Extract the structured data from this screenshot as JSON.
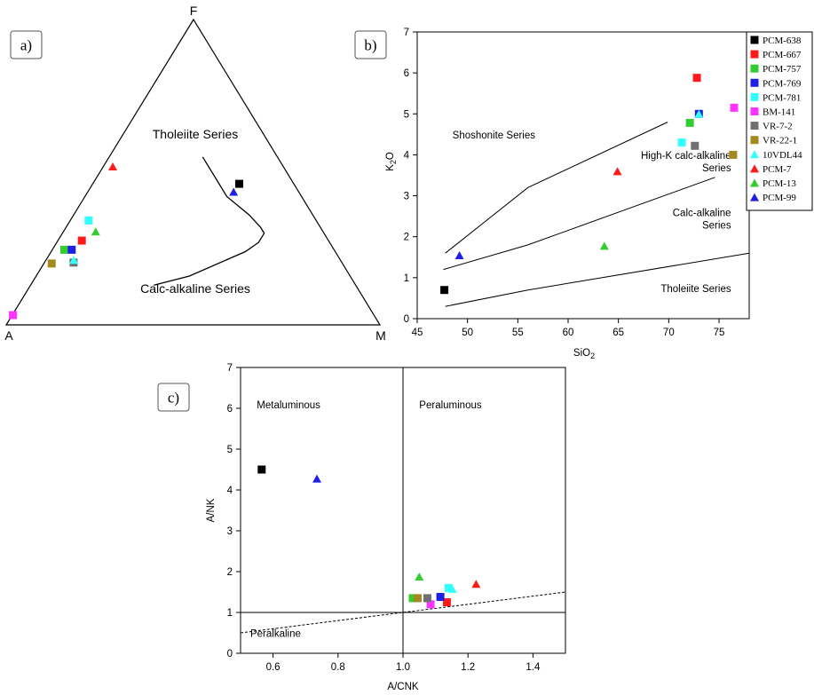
{
  "colors": {
    "PCM-638": "#000000",
    "PCM-667": "#ff1a1a",
    "PCM-757": "#33cc33",
    "PCM-769": "#1f1fe6",
    "PCM-781": "#33ffff",
    "BM-141": "#ff33ff",
    "VR-7-2": "#707070",
    "VR-22-1": "#a38a1f",
    "10VDL44": "#33ffff",
    "PCM-7": "#ff1a1a",
    "PCM-13": "#33cc33",
    "PCM-99": "#1f1fe6"
  },
  "legend": {
    "entries": [
      {
        "label": "PCM-638",
        "marker": "square",
        "color": "#000000"
      },
      {
        "label": "PCM-667",
        "marker": "square",
        "color": "#ff1a1a"
      },
      {
        "label": "PCM-757",
        "marker": "square",
        "color": "#33cc33"
      },
      {
        "label": "PCM-769",
        "marker": "square",
        "color": "#1f1fe6"
      },
      {
        "label": "PCM-781",
        "marker": "square",
        "color": "#33ffff"
      },
      {
        "label": "BM-141",
        "marker": "square",
        "color": "#ff33ff"
      },
      {
        "label": "VR-7-2",
        "marker": "square",
        "color": "#707070"
      },
      {
        "label": "VR-22-1",
        "marker": "square",
        "color": "#a38a1f"
      },
      {
        "label": "10VDL44",
        "marker": "triangle",
        "color": "#33ffff"
      },
      {
        "label": "PCM-7",
        "marker": "triangle",
        "color": "#ff1a1a"
      },
      {
        "label": "PCM-13",
        "marker": "triangle",
        "color": "#33cc33"
      },
      {
        "label": "PCM-99",
        "marker": "triangle",
        "color": "#1f1fe6"
      }
    ]
  },
  "chart_data": [
    {
      "panel": "a)",
      "type": "scatter",
      "subtype": "ternary AFM",
      "vertices": {
        "top": "F",
        "left": "A",
        "right": "M"
      },
      "regions": [
        "Tholeiite Series",
        "Calc-alkaline Series"
      ],
      "boundary_afm": [
        [
          0.55,
          0.25
        ],
        [
          0.42,
          0.38
        ],
        [
          0.36,
          0.47
        ],
        [
          0.32,
          0.52
        ],
        [
          0.3,
          0.54
        ],
        [
          0.27,
          0.54
        ],
        [
          0.24,
          0.52
        ],
        [
          0.16,
          0.41
        ],
        [
          0.13,
          0.33
        ]
      ],
      "points": [
        {
          "sample": "PCM-638",
          "marker": "square",
          "afm": [
            0.146,
            0.462,
            0.392
          ]
        },
        {
          "sample": "PCM-667",
          "marker": "square",
          "afm": [
            0.66,
            0.276,
            0.064
          ]
        },
        {
          "sample": "PCM-757",
          "marker": "square",
          "afm": [
            0.722,
            0.246,
            0.032
          ]
        },
        {
          "sample": "PCM-769",
          "marker": "square",
          "afm": [
            0.702,
            0.246,
            0.052
          ]
        },
        {
          "sample": "PCM-781",
          "marker": "square",
          "afm": [
            0.609,
            0.342,
            0.049
          ]
        },
        {
          "sample": "BM-141",
          "marker": "square",
          "afm": [
            0.966,
            0.032,
            0.002
          ]
        },
        {
          "sample": "VR-7-2",
          "marker": "square",
          "afm": [
            0.718,
            0.204,
            0.078
          ]
        },
        {
          "sample": "VR-22-1",
          "marker": "square",
          "afm": [
            0.778,
            0.201,
            0.021
          ]
        },
        {
          "sample": "10VDL44",
          "marker": "triangle",
          "afm": [
            0.713,
            0.213,
            0.074
          ]
        },
        {
          "sample": "PCM-7",
          "marker": "triangle",
          "afm": [
            0.456,
            0.519,
            0.025
          ]
        },
        {
          "sample": "PCM-13",
          "marker": "triangle",
          "afm": [
            0.608,
            0.306,
            0.086
          ]
        },
        {
          "sample": "PCM-99",
          "marker": "triangle",
          "afm": [
            0.174,
            0.436,
            0.39
          ]
        }
      ]
    },
    {
      "panel": "b)",
      "type": "scatter",
      "xlabel": "SiO",
      "xlabel_sub": "2",
      "ylabel": "K",
      "ylabel_sub": "2",
      "ylabel_end": "O",
      "xlim": [
        45,
        78
      ],
      "ylim": [
        0,
        7
      ],
      "xticks": [
        45,
        50,
        55,
        60,
        65,
        70,
        75
      ],
      "yticks": [
        0,
        1,
        2,
        3,
        4,
        5,
        6,
        7
      ],
      "regions": [
        {
          "lines": [
            "Shoshonite Series"
          ],
          "at": [
            48.5,
            4.4
          ]
        },
        {
          "lines": [
            "High-K calc-alkaline",
            "Series"
          ],
          "at": [
            76.2,
            3.9
          ]
        },
        {
          "lines": [
            "Calc-alkaline",
            "Series"
          ],
          "at": [
            76.2,
            2.5
          ]
        },
        {
          "lines": [
            "Tholeiite Series"
          ],
          "at": [
            76.2,
            0.65
          ]
        }
      ],
      "boundaries": [
        [
          [
            47.8,
            1.6
          ],
          [
            56,
            3.2
          ],
          [
            69.9,
            4.8
          ]
        ],
        [
          [
            47.6,
            1.2
          ],
          [
            56,
            1.8
          ],
          [
            74.6,
            3.45
          ]
        ],
        [
          [
            47.8,
            0.3
          ],
          [
            56,
            0.7
          ],
          [
            78,
            1.6
          ]
        ]
      ],
      "points": [
        {
          "sample": "PCM-638",
          "marker": "square",
          "x": 47.7,
          "y": 0.7
        },
        {
          "sample": "PCM-667",
          "marker": "square",
          "x": 72.8,
          "y": 5.88
        },
        {
          "sample": "PCM-757",
          "marker": "square",
          "x": 72.1,
          "y": 4.78
        },
        {
          "sample": "PCM-769",
          "marker": "square",
          "x": 73.0,
          "y": 5.0
        },
        {
          "sample": "PCM-781",
          "marker": "square",
          "x": 71.3,
          "y": 4.3
        },
        {
          "sample": "BM-141",
          "marker": "square",
          "x": 76.5,
          "y": 5.15
        },
        {
          "sample": "VR-7-2",
          "marker": "square",
          "x": 72.6,
          "y": 4.22
        },
        {
          "sample": "VR-22-1",
          "marker": "square",
          "x": 76.4,
          "y": 4.0
        },
        {
          "sample": "10VDL44",
          "marker": "triangle",
          "x": 73.0,
          "y": 5.0
        },
        {
          "sample": "PCM-7",
          "marker": "triangle",
          "x": 64.9,
          "y": 3.6
        },
        {
          "sample": "PCM-13",
          "marker": "triangle",
          "x": 63.6,
          "y": 1.78
        },
        {
          "sample": "PCM-99",
          "marker": "triangle",
          "x": 49.2,
          "y": 1.55
        }
      ]
    },
    {
      "panel": "c)",
      "type": "scatter",
      "xlabel": "A/CNK",
      "ylabel": "A/NK",
      "xlim": [
        0.5,
        1.5
      ],
      "ylim": [
        0,
        7
      ],
      "xticks": [
        0.6,
        0.8,
        1.0,
        1.2,
        1.4
      ],
      "xticklabels": [
        "0.6",
        "0.8",
        "1.0",
        "1.2",
        "1.4"
      ],
      "yticks": [
        0,
        1,
        2,
        3,
        4,
        5,
        6,
        7
      ],
      "regions": [
        {
          "lines": [
            "Metaluminous"
          ],
          "at": [
            0.55,
            6.0
          ]
        },
        {
          "lines": [
            "Peraluminous"
          ],
          "at": [
            1.05,
            6.0
          ]
        },
        {
          "lines": [
            "Peralkaline"
          ],
          "at": [
            0.53,
            0.4
          ]
        }
      ],
      "reference_lines": {
        "vertical_x": 1.0,
        "horizontal_y": 1.0,
        "dashed": [
          [
            0.5,
            0.5
          ],
          [
            1.5,
            1.5
          ]
        ]
      },
      "points": [
        {
          "sample": "PCM-638",
          "marker": "square",
          "x": 0.565,
          "y": 4.5
        },
        {
          "sample": "PCM-667",
          "marker": "square",
          "x": 1.135,
          "y": 1.25
        },
        {
          "sample": "PCM-757",
          "marker": "square",
          "x": 1.03,
          "y": 1.35
        },
        {
          "sample": "PCM-769",
          "marker": "square",
          "x": 1.115,
          "y": 1.38
        },
        {
          "sample": "PCM-781",
          "marker": "square",
          "x": 1.14,
          "y": 1.6
        },
        {
          "sample": "BM-141",
          "marker": "square",
          "x": 1.085,
          "y": 1.2
        },
        {
          "sample": "VR-7-2",
          "marker": "square",
          "x": 1.075,
          "y": 1.35
        },
        {
          "sample": "VR-22-1",
          "marker": "square",
          "x": 1.045,
          "y": 1.35
        },
        {
          "sample": "10VDL44",
          "marker": "triangle",
          "x": 1.152,
          "y": 1.58
        },
        {
          "sample": "PCM-7",
          "marker": "triangle",
          "x": 1.225,
          "y": 1.7
        },
        {
          "sample": "PCM-13",
          "marker": "triangle",
          "x": 1.05,
          "y": 1.88
        },
        {
          "sample": "PCM-99",
          "marker": "triangle",
          "x": 0.735,
          "y": 4.28
        }
      ]
    }
  ]
}
